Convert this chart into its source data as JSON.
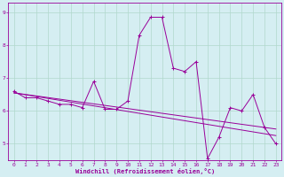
{
  "xlabel": "Windchill (Refroidissement éolien,°C)",
  "xlim": [
    -0.5,
    23.5
  ],
  "ylim": [
    4.5,
    9.3
  ],
  "yticks": [
    5,
    6,
    7,
    8,
    9
  ],
  "xticks": [
    0,
    1,
    2,
    3,
    4,
    5,
    6,
    7,
    8,
    9,
    10,
    11,
    12,
    13,
    14,
    15,
    16,
    17,
    18,
    19,
    20,
    21,
    22,
    23
  ],
  "bg_color": "#d5eef2",
  "line_color": "#990099",
  "grid_color": "#b0d8cc",
  "series1": {
    "x": [
      0,
      1,
      2,
      3,
      4,
      5,
      6,
      7,
      8,
      9,
      10,
      11,
      12,
      13,
      14,
      15,
      16,
      17,
      18,
      19,
      20,
      21,
      22,
      23
    ],
    "y": [
      6.6,
      6.4,
      6.4,
      6.3,
      6.2,
      6.2,
      6.1,
      6.9,
      6.05,
      6.05,
      6.3,
      8.3,
      8.85,
      8.85,
      7.3,
      7.2,
      7.5,
      4.55,
      5.2,
      6.1,
      6.0,
      6.5,
      5.5,
      5.0
    ]
  },
  "series2": {
    "x": [
      0,
      23
    ],
    "y": [
      6.55,
      5.45
    ]
  },
  "series3": {
    "x": [
      0,
      23
    ],
    "y": [
      6.55,
      5.25
    ]
  }
}
